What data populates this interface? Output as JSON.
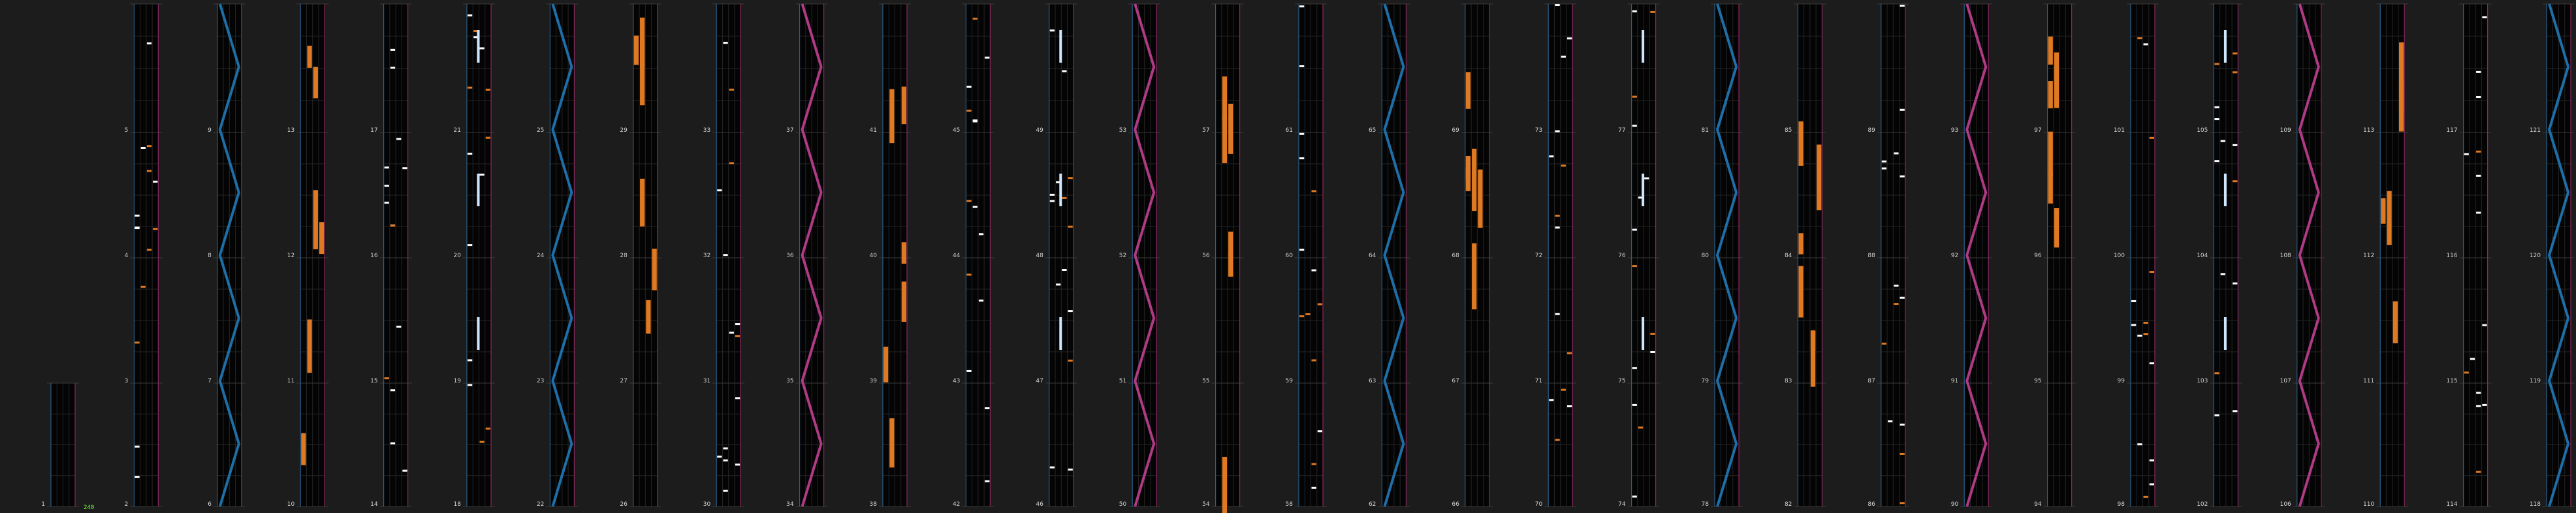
{
  "chart_data": {
    "type": "rhythm-game-chart",
    "columns": 31,
    "rows_per_column": 4,
    "lanes_per_measure": 4,
    "measure_numbers": [
      [
        [
          1,
          2
        ],
        [
          3,
          4,
          5,
          6
        ]
      ],
      [
        [
          2,
          3,
          4,
          5
        ],
        [
          6,
          7,
          8,
          9
        ]
      ],
      [
        [
          10,
          11,
          12,
          13
        ],
        [
          14,
          15,
          16,
          17
        ]
      ]
    ],
    "combo_label": "240",
    "colors": {
      "background": "#1c1c1c",
      "lane": "#040404",
      "left_border": "#2a5f8a",
      "right_border": "#8a2a5f",
      "tap_note": "#ffffff",
      "hold_note": "#e07a22",
      "slide_blue": "#1e6fa8",
      "slide_pink": "#b03a86",
      "ex_note": "#cfe6ff",
      "combo": "#6cff3a"
    },
    "column_measures": [
      [
        1,
        2
      ],
      [
        3,
        4,
        5,
        6,
        7,
        8,
        9,
        10
      ],
      [
        11,
        12,
        13,
        14,
        15,
        16,
        17,
        18
      ]
    ]
  }
}
